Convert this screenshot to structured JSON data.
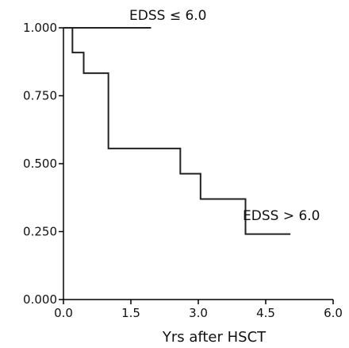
{
  "chart_data": {
    "type": "line",
    "xlabel": "Yrs after HSCT",
    "ylabel": "",
    "xlim": [
      0,
      6
    ],
    "ylim": [
      0,
      1
    ],
    "x_ticks": [
      "0.0",
      "1.5",
      "3.0",
      "4.5",
      "6.0"
    ],
    "y_ticks": [
      "0.000",
      "0.250",
      "0.500",
      "0.750",
      "1.000"
    ],
    "grid": false,
    "series": [
      {
        "name": "EDSS ≤ 6.0",
        "step": true,
        "x": [
          0,
          1.95
        ],
        "y": [
          1.0,
          1.0
        ]
      },
      {
        "name": "EDSS > 6.0",
        "step": true,
        "x": [
          0,
          0.2,
          0.45,
          1.0,
          2.6,
          3.05,
          4.05,
          5.05
        ],
        "y": [
          1.0,
          0.909,
          0.833,
          0.556,
          0.463,
          0.37,
          0.241,
          0.241
        ]
      }
    ],
    "annotations": [
      "EDSS ≤ 6.0",
      "EDSS > 6.0"
    ]
  }
}
